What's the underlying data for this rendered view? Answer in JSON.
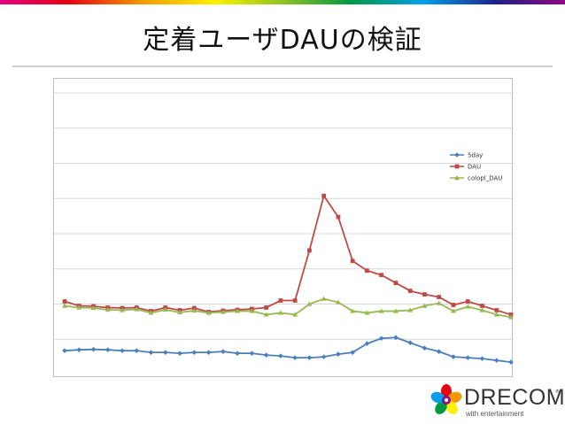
{
  "slide": {
    "title": "定着ユーザDAUの検証"
  },
  "brand": {
    "name": "DRECOM",
    "registered_mark": "®",
    "tagline": "with entertainment"
  },
  "colors": {
    "series_5day": "#4a7ebb",
    "series_dau": "#be4b48",
    "series_colopl": "#98b954",
    "gridline": "#d9d9d9"
  },
  "chart_data": {
    "type": "line",
    "title": "",
    "xlabel": "",
    "ylabel": "",
    "grid": true,
    "legend_position": "top-right",
    "ylim": [
      0,
      32
    ],
    "gridline_values": [
      4,
      8,
      12,
      16,
      20,
      24,
      28,
      32
    ],
    "y_tick_labels_visible": false,
    "x": [
      1,
      2,
      3,
      4,
      5,
      6,
      7,
      8,
      9,
      10,
      11,
      12,
      13,
      14,
      15,
      16,
      17,
      18,
      19,
      20,
      21,
      22,
      23,
      24,
      25,
      26,
      27,
      28,
      29,
      30,
      31,
      32
    ],
    "series": [
      {
        "name": "5day",
        "marker": "diamond",
        "color": "#4a7ebb",
        "values": [
          2.7,
          2.8,
          2.85,
          2.8,
          2.7,
          2.7,
          2.5,
          2.5,
          2.4,
          2.5,
          2.5,
          2.6,
          2.4,
          2.4,
          2.2,
          2.1,
          1.9,
          1.9,
          2.0,
          2.3,
          2.5,
          3.5,
          4.1,
          4.2,
          3.6,
          3.0,
          2.6,
          2.0,
          1.9,
          1.8,
          1.6,
          1.4
        ]
      },
      {
        "name": "DAU",
        "marker": "square",
        "color": "#be4b48",
        "values": [
          8.3,
          7.8,
          7.75,
          7.6,
          7.55,
          7.6,
          7.2,
          7.6,
          7.3,
          7.55,
          7.1,
          7.25,
          7.35,
          7.45,
          7.6,
          8.4,
          8.4,
          14.1,
          20.3,
          17.9,
          12.9,
          11.8,
          11.3,
          10.4,
          9.5,
          9.1,
          8.8,
          7.9,
          8.3,
          7.8,
          7.3,
          6.8
        ]
      },
      {
        "name": "colopl_DAU",
        "marker": "triangle",
        "color": "#98b954",
        "values": [
          7.8,
          7.6,
          7.55,
          7.35,
          7.3,
          7.4,
          7.0,
          7.35,
          7.05,
          7.25,
          7.0,
          7.1,
          7.2,
          7.2,
          6.8,
          7.0,
          6.8,
          8.0,
          8.6,
          8.2,
          7.2,
          7.0,
          7.2,
          7.2,
          7.3,
          7.8,
          8.1,
          7.2,
          7.7,
          7.3,
          6.8,
          6.5
        ]
      }
    ]
  }
}
